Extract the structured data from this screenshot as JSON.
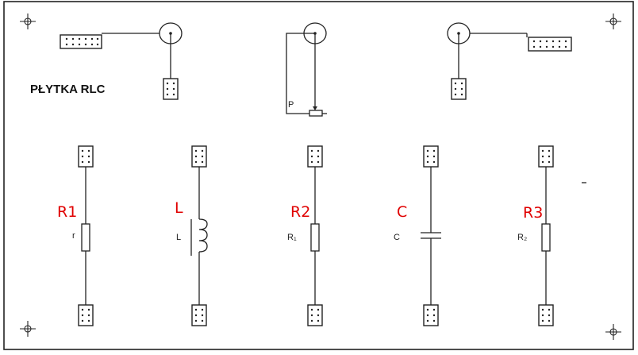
{
  "board": {
    "title": "PŁYTKA RLC",
    "potentiometer_label": "P"
  },
  "components": [
    {
      "id": "r1",
      "red_label": "R1",
      "symbol_label": "r",
      "type": "resistor"
    },
    {
      "id": "l",
      "red_label": "L",
      "symbol_label": "L",
      "type": "inductor"
    },
    {
      "id": "r2",
      "red_label": "R2",
      "symbol_label": "R₁",
      "type": "resistor"
    },
    {
      "id": "c",
      "red_label": "C",
      "symbol_label": "C",
      "type": "capacitor"
    },
    {
      "id": "r3",
      "red_label": "R3",
      "symbol_label": "R₂",
      "type": "resistor"
    }
  ],
  "colors": {
    "annotation": "#e00000",
    "ink": "#222222",
    "background": "#ffffff"
  }
}
